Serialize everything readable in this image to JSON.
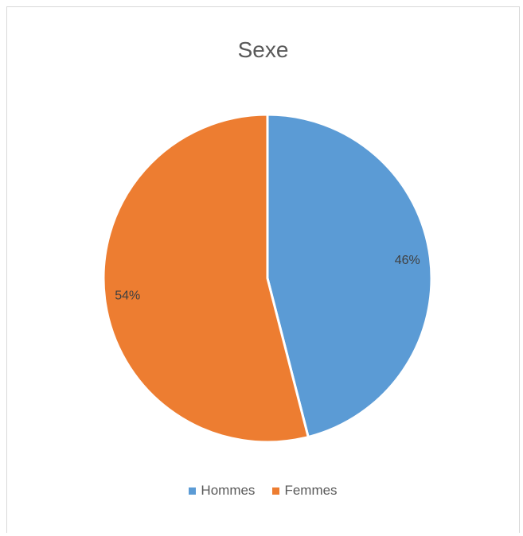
{
  "chart_data": {
    "type": "pie",
    "title": "Sexe",
    "slices": [
      {
        "label": "Hommes",
        "value": 46,
        "display": "46%",
        "color": "#5b9bd5"
      },
      {
        "label": "Femmes",
        "value": 54,
        "display": "54%",
        "color": "#ed7d31"
      }
    ],
    "legend_position": "bottom"
  }
}
